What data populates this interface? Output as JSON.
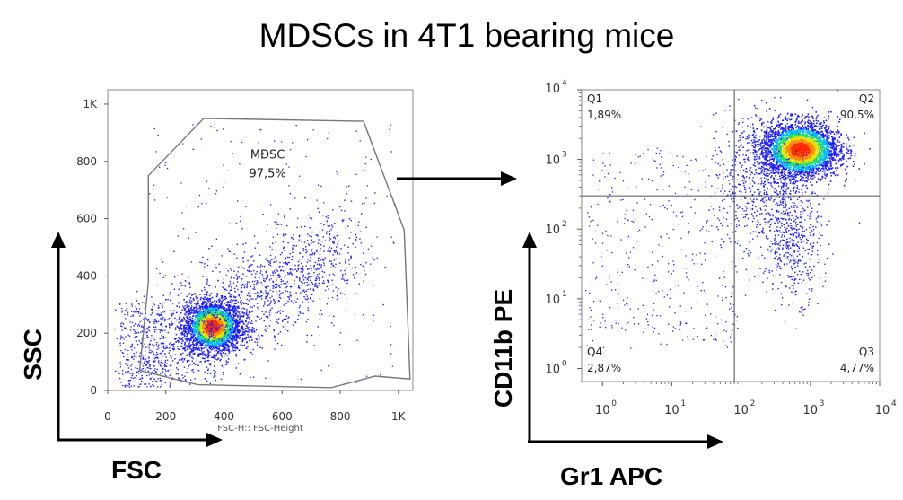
{
  "title": "MDSCs in 4T1 bearing mice",
  "chart_data": [
    {
      "type": "scatter",
      "panel": "left",
      "xlabel": "FSC",
      "ylabel": "SSC",
      "x_param_label": "FSC-H:: FSC-Height",
      "xlim": [
        0,
        1050
      ],
      "ylim": [
        0,
        1050
      ],
      "x_ticks": [
        "0",
        "200",
        "400",
        "600",
        "800",
        "1K"
      ],
      "y_ticks": [
        "0",
        "200",
        "400",
        "600",
        "800",
        "1K"
      ],
      "gate": {
        "name": "MDSC",
        "percent": "97,5%",
        "polygon": [
          [
            140,
            750
          ],
          [
            330,
            950
          ],
          [
            880,
            940
          ],
          [
            1020,
            560
          ],
          [
            1040,
            40
          ],
          [
            920,
            50
          ],
          [
            770,
            10
          ],
          [
            310,
            20
          ],
          [
            110,
            70
          ],
          [
            140,
            380
          ]
        ]
      },
      "population_center": [
        360,
        225
      ],
      "event_color_scale": [
        "#1a1aff",
        "#00b4ff",
        "#00e060",
        "#e8e000",
        "#ff8000",
        "#ff2000"
      ]
    },
    {
      "type": "scatter",
      "panel": "right",
      "xlabel": "Gr1 APC",
      "ylabel": "CD11b PE",
      "scale": "log",
      "xlim": [
        0.5,
        10000
      ],
      "ylim": [
        0.65,
        10000
      ],
      "x_ticks": [
        {
          "base": "10",
          "exp": "0"
        },
        {
          "base": "10",
          "exp": "1"
        },
        {
          "base": "10",
          "exp": "2"
        },
        {
          "base": "10",
          "exp": "3"
        },
        {
          "base": "10",
          "exp": "4"
        }
      ],
      "y_ticks": [
        {
          "base": "10",
          "exp": "0"
        },
        {
          "base": "10",
          "exp": "1"
        },
        {
          "base": "10",
          "exp": "2"
        },
        {
          "base": "10",
          "exp": "3"
        },
        {
          "base": "10",
          "exp": "4"
        }
      ],
      "quadrant_divider": {
        "x": 80,
        "y": 300
      },
      "quadrants": [
        {
          "name": "Q1",
          "percent": "1,89%",
          "position": "top-left"
        },
        {
          "name": "Q2",
          "percent": "90,5%",
          "position": "top-right"
        },
        {
          "name": "Q3",
          "percent": "4,77%",
          "position": "bottom-right"
        },
        {
          "name": "Q4",
          "percent": "2,87%",
          "position": "bottom-left"
        }
      ],
      "population_center": [
        700,
        1400
      ]
    }
  ]
}
